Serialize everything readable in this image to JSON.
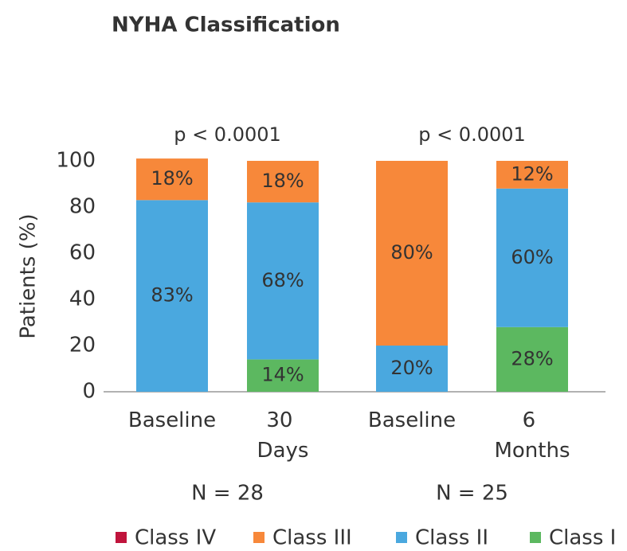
{
  "chart_data": {
    "type": "stacked_bar",
    "title": "NYHA Classification",
    "ylabel": "Patients (%)",
    "categories": [
      "Baseline",
      "30 Days",
      "Baseline",
      "6 Months"
    ],
    "groups": [
      {
        "p": "p < 0.0001",
        "n": "N = 28"
      },
      {
        "p": "p < 0.0001",
        "n": "N = 25"
      }
    ],
    "series": [
      {
        "name": "Class I",
        "color": "#5cb860",
        "values": [
          0,
          14,
          0,
          28
        ],
        "value_labels": [
          null,
          "14%",
          null,
          "28%"
        ]
      },
      {
        "name": "Class II",
        "color": "#4aa8df",
        "values": [
          83,
          68,
          20,
          60
        ],
        "value_labels": [
          "83%",
          "68%",
          "20%",
          "60%"
        ]
      },
      {
        "name": "Class III",
        "color": "#f7883a",
        "values": [
          18,
          18,
          80,
          12
        ],
        "value_labels": [
          "18%",
          "18%",
          "80%",
          "12%"
        ]
      },
      {
        "name": "Class IV",
        "color": "#c0143c",
        "values": [
          0,
          0,
          0,
          0
        ]
      }
    ],
    "legend_order": [
      3,
      2,
      1,
      0
    ],
    "ylim": [
      0,
      100
    ],
    "yticks": [
      0,
      20,
      40,
      60,
      80,
      100
    ],
    "grid": false
  }
}
